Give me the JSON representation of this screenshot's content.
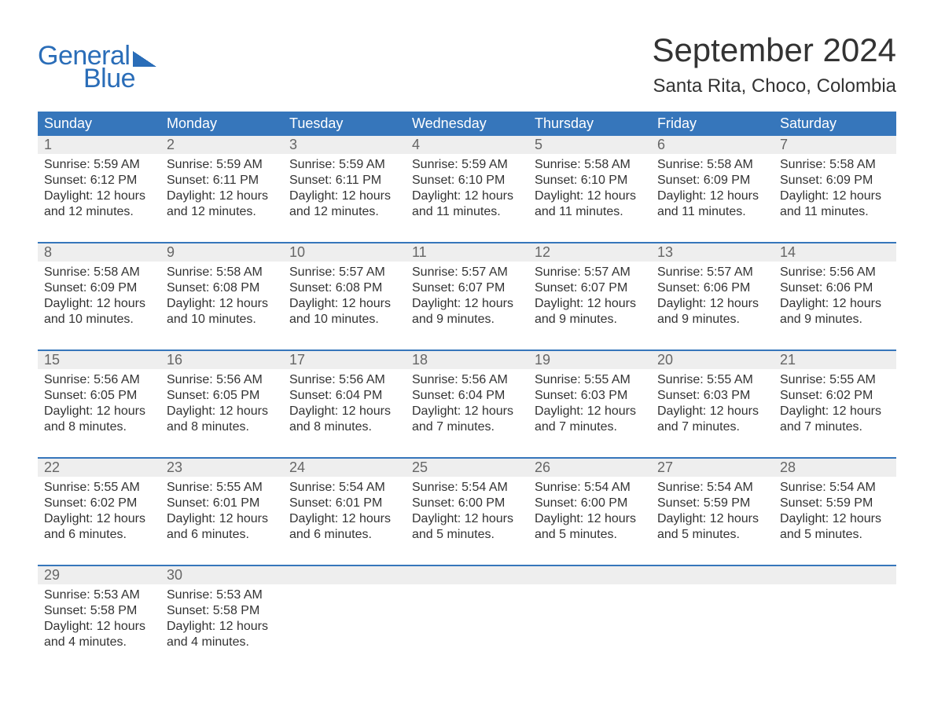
{
  "logo": {
    "text1": "General",
    "text2": "Blue"
  },
  "title": {
    "month": "September 2024",
    "location": "Santa Rita, Choco, Colombia"
  },
  "colors": {
    "header_bg": "#3676bb",
    "header_text": "#ffffff",
    "daynum_bg": "#eeeeee",
    "daynum_text": "#666666",
    "body_text": "#333333",
    "logo_color": "#2a6db8",
    "background": "#ffffff"
  },
  "typography": {
    "title_fontsize": 42,
    "location_fontsize": 24,
    "dayhead_fontsize": 18,
    "daynum_fontsize": 18,
    "cell_fontsize": 16
  },
  "layout": {
    "columns": 7,
    "weeks": 5
  },
  "day_headers": [
    "Sunday",
    "Monday",
    "Tuesday",
    "Wednesday",
    "Thursday",
    "Friday",
    "Saturday"
  ],
  "weeks": [
    [
      {
        "num": "1",
        "sunrise": "Sunrise: 5:59 AM",
        "sunset": "Sunset: 6:12 PM",
        "d1": "Daylight: 12 hours",
        "d2": "and 12 minutes."
      },
      {
        "num": "2",
        "sunrise": "Sunrise: 5:59 AM",
        "sunset": "Sunset: 6:11 PM",
        "d1": "Daylight: 12 hours",
        "d2": "and 12 minutes."
      },
      {
        "num": "3",
        "sunrise": "Sunrise: 5:59 AM",
        "sunset": "Sunset: 6:11 PM",
        "d1": "Daylight: 12 hours",
        "d2": "and 12 minutes."
      },
      {
        "num": "4",
        "sunrise": "Sunrise: 5:59 AM",
        "sunset": "Sunset: 6:10 PM",
        "d1": "Daylight: 12 hours",
        "d2": "and 11 minutes."
      },
      {
        "num": "5",
        "sunrise": "Sunrise: 5:58 AM",
        "sunset": "Sunset: 6:10 PM",
        "d1": "Daylight: 12 hours",
        "d2": "and 11 minutes."
      },
      {
        "num": "6",
        "sunrise": "Sunrise: 5:58 AM",
        "sunset": "Sunset: 6:09 PM",
        "d1": "Daylight: 12 hours",
        "d2": "and 11 minutes."
      },
      {
        "num": "7",
        "sunrise": "Sunrise: 5:58 AM",
        "sunset": "Sunset: 6:09 PM",
        "d1": "Daylight: 12 hours",
        "d2": "and 11 minutes."
      }
    ],
    [
      {
        "num": "8",
        "sunrise": "Sunrise: 5:58 AM",
        "sunset": "Sunset: 6:09 PM",
        "d1": "Daylight: 12 hours",
        "d2": "and 10 minutes."
      },
      {
        "num": "9",
        "sunrise": "Sunrise: 5:58 AM",
        "sunset": "Sunset: 6:08 PM",
        "d1": "Daylight: 12 hours",
        "d2": "and 10 minutes."
      },
      {
        "num": "10",
        "sunrise": "Sunrise: 5:57 AM",
        "sunset": "Sunset: 6:08 PM",
        "d1": "Daylight: 12 hours",
        "d2": "and 10 minutes."
      },
      {
        "num": "11",
        "sunrise": "Sunrise: 5:57 AM",
        "sunset": "Sunset: 6:07 PM",
        "d1": "Daylight: 12 hours",
        "d2": "and 9 minutes."
      },
      {
        "num": "12",
        "sunrise": "Sunrise: 5:57 AM",
        "sunset": "Sunset: 6:07 PM",
        "d1": "Daylight: 12 hours",
        "d2": "and 9 minutes."
      },
      {
        "num": "13",
        "sunrise": "Sunrise: 5:57 AM",
        "sunset": "Sunset: 6:06 PM",
        "d1": "Daylight: 12 hours",
        "d2": "and 9 minutes."
      },
      {
        "num": "14",
        "sunrise": "Sunrise: 5:56 AM",
        "sunset": "Sunset: 6:06 PM",
        "d1": "Daylight: 12 hours",
        "d2": "and 9 minutes."
      }
    ],
    [
      {
        "num": "15",
        "sunrise": "Sunrise: 5:56 AM",
        "sunset": "Sunset: 6:05 PM",
        "d1": "Daylight: 12 hours",
        "d2": "and 8 minutes."
      },
      {
        "num": "16",
        "sunrise": "Sunrise: 5:56 AM",
        "sunset": "Sunset: 6:05 PM",
        "d1": "Daylight: 12 hours",
        "d2": "and 8 minutes."
      },
      {
        "num": "17",
        "sunrise": "Sunrise: 5:56 AM",
        "sunset": "Sunset: 6:04 PM",
        "d1": "Daylight: 12 hours",
        "d2": "and 8 minutes."
      },
      {
        "num": "18",
        "sunrise": "Sunrise: 5:56 AM",
        "sunset": "Sunset: 6:04 PM",
        "d1": "Daylight: 12 hours",
        "d2": "and 7 minutes."
      },
      {
        "num": "19",
        "sunrise": "Sunrise: 5:55 AM",
        "sunset": "Sunset: 6:03 PM",
        "d1": "Daylight: 12 hours",
        "d2": "and 7 minutes."
      },
      {
        "num": "20",
        "sunrise": "Sunrise: 5:55 AM",
        "sunset": "Sunset: 6:03 PM",
        "d1": "Daylight: 12 hours",
        "d2": "and 7 minutes."
      },
      {
        "num": "21",
        "sunrise": "Sunrise: 5:55 AM",
        "sunset": "Sunset: 6:02 PM",
        "d1": "Daylight: 12 hours",
        "d2": "and 7 minutes."
      }
    ],
    [
      {
        "num": "22",
        "sunrise": "Sunrise: 5:55 AM",
        "sunset": "Sunset: 6:02 PM",
        "d1": "Daylight: 12 hours",
        "d2": "and 6 minutes."
      },
      {
        "num": "23",
        "sunrise": "Sunrise: 5:55 AM",
        "sunset": "Sunset: 6:01 PM",
        "d1": "Daylight: 12 hours",
        "d2": "and 6 minutes."
      },
      {
        "num": "24",
        "sunrise": "Sunrise: 5:54 AM",
        "sunset": "Sunset: 6:01 PM",
        "d1": "Daylight: 12 hours",
        "d2": "and 6 minutes."
      },
      {
        "num": "25",
        "sunrise": "Sunrise: 5:54 AM",
        "sunset": "Sunset: 6:00 PM",
        "d1": "Daylight: 12 hours",
        "d2": "and 5 minutes."
      },
      {
        "num": "26",
        "sunrise": "Sunrise: 5:54 AM",
        "sunset": "Sunset: 6:00 PM",
        "d1": "Daylight: 12 hours",
        "d2": "and 5 minutes."
      },
      {
        "num": "27",
        "sunrise": "Sunrise: 5:54 AM",
        "sunset": "Sunset: 5:59 PM",
        "d1": "Daylight: 12 hours",
        "d2": "and 5 minutes."
      },
      {
        "num": "28",
        "sunrise": "Sunrise: 5:54 AM",
        "sunset": "Sunset: 5:59 PM",
        "d1": "Daylight: 12 hours",
        "d2": "and 5 minutes."
      }
    ],
    [
      {
        "num": "29",
        "sunrise": "Sunrise: 5:53 AM",
        "sunset": "Sunset: 5:58 PM",
        "d1": "Daylight: 12 hours",
        "d2": "and 4 minutes."
      },
      {
        "num": "30",
        "sunrise": "Sunrise: 5:53 AM",
        "sunset": "Sunset: 5:58 PM",
        "d1": "Daylight: 12 hours",
        "d2": "and 4 minutes."
      },
      {
        "empty": true
      },
      {
        "empty": true
      },
      {
        "empty": true
      },
      {
        "empty": true
      },
      {
        "empty": true
      }
    ]
  ]
}
